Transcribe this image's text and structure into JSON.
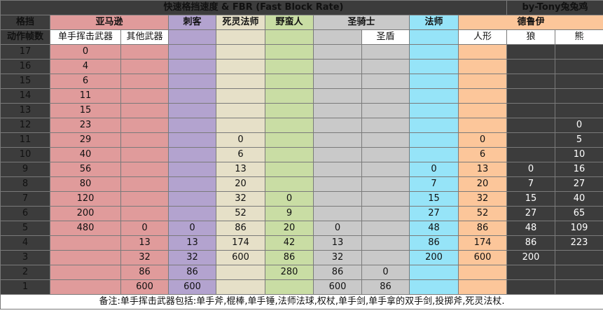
{
  "title": "快速格挡速度 & FBR (Fast Block Rate)",
  "author": "by-Tony兔兔鸡",
  "header": {
    "frames_top": "格挡",
    "frames_bottom": "动作帧数",
    "amazon": "亚马逊",
    "amazon_sub1": "单手挥击武器",
    "amazon_sub2": "其他武器",
    "assassin": "刺客",
    "necromancer": "死灵法师",
    "barbarian": "野蛮人",
    "paladin": "圣骑士",
    "paladin_sub": "圣盾",
    "sorceress": "法师",
    "druid": "德鲁伊",
    "druid_sub1": "人形",
    "druid_sub2": "狼",
    "druid_sub3": "熊"
  },
  "rows": [
    {
      "f": "17",
      "a1": "0",
      "a2": "",
      "as": "",
      "ne": "",
      "ba": "",
      "pa": "",
      "ps": "",
      "so": "",
      "dh": "",
      "dw": "",
      "db": ""
    },
    {
      "f": "16",
      "a1": "4",
      "a2": "",
      "as": "",
      "ne": "",
      "ba": "",
      "pa": "",
      "ps": "",
      "so": "",
      "dh": "",
      "dw": "",
      "db": ""
    },
    {
      "f": "15",
      "a1": "6",
      "a2": "",
      "as": "",
      "ne": "",
      "ba": "",
      "pa": "",
      "ps": "",
      "so": "",
      "dh": "",
      "dw": "",
      "db": ""
    },
    {
      "f": "14",
      "a1": "11",
      "a2": "",
      "as": "",
      "ne": "",
      "ba": "",
      "pa": "",
      "ps": "",
      "so": "",
      "dh": "",
      "dw": "",
      "db": ""
    },
    {
      "f": "13",
      "a1": "15",
      "a2": "",
      "as": "",
      "ne": "",
      "ba": "",
      "pa": "",
      "ps": "",
      "so": "",
      "dh": "",
      "dw": "",
      "db": ""
    },
    {
      "f": "12",
      "a1": "23",
      "a2": "",
      "as": "",
      "ne": "",
      "ba": "",
      "pa": "",
      "ps": "",
      "so": "",
      "dh": "",
      "dw": "",
      "db": "0"
    },
    {
      "f": "11",
      "a1": "29",
      "a2": "",
      "as": "",
      "ne": "0",
      "ba": "",
      "pa": "",
      "ps": "",
      "so": "",
      "dh": "0",
      "dw": "",
      "db": "5"
    },
    {
      "f": "10",
      "a1": "40",
      "a2": "",
      "as": "",
      "ne": "6",
      "ba": "",
      "pa": "",
      "ps": "",
      "so": "",
      "dh": "6",
      "dw": "",
      "db": "10"
    },
    {
      "f": "9",
      "a1": "56",
      "a2": "",
      "as": "",
      "ne": "13",
      "ba": "",
      "pa": "",
      "ps": "",
      "so": "0",
      "dh": "13",
      "dw": "0",
      "db": "16"
    },
    {
      "f": "8",
      "a1": "80",
      "a2": "",
      "as": "",
      "ne": "20",
      "ba": "",
      "pa": "",
      "ps": "",
      "so": "7",
      "dh": "20",
      "dw": "7",
      "db": "27"
    },
    {
      "f": "7",
      "a1": "120",
      "a2": "",
      "as": "",
      "ne": "32",
      "ba": "0",
      "pa": "",
      "ps": "",
      "so": "15",
      "dh": "32",
      "dw": "15",
      "db": "40"
    },
    {
      "f": "6",
      "a1": "200",
      "a2": "",
      "as": "",
      "ne": "52",
      "ba": "9",
      "pa": "",
      "ps": "",
      "so": "27",
      "dh": "52",
      "dw": "27",
      "db": "65"
    },
    {
      "f": "5",
      "a1": "480",
      "a2": "0",
      "as": "0",
      "ne": "86",
      "ba": "20",
      "pa": "0",
      "ps": "",
      "so": "48",
      "dh": "86",
      "dw": "48",
      "db": "109"
    },
    {
      "f": "4",
      "a1": "",
      "a2": "13",
      "as": "13",
      "ne": "174",
      "ba": "42",
      "pa": "13",
      "ps": "",
      "so": "86",
      "dh": "174",
      "dw": "86",
      "db": "223"
    },
    {
      "f": "3",
      "a1": "",
      "a2": "32",
      "as": "32",
      "ne": "600",
      "ba": "86",
      "pa": "32",
      "ps": "",
      "so": "200",
      "dh": "600",
      "dw": "200",
      "db": ""
    },
    {
      "f": "2",
      "a1": "",
      "a2": "86",
      "as": "86",
      "ne": "",
      "ba": "280",
      "pa": "86",
      "ps": "0",
      "so": "",
      "dh": "",
      "dw": "",
      "db": ""
    },
    {
      "f": "1",
      "a1": "",
      "a2": "600",
      "as": "600",
      "ne": "",
      "ba": "",
      "pa": "600",
      "ps": "86",
      "so": "",
      "dh": "",
      "dw": "",
      "db": ""
    }
  ],
  "note": "备注:单手挥击武器包括:单手斧,棍棒,单手锤,法师法球,权杖,单手剑,单手拿的双手剑,投掷斧,死灵法杖."
}
